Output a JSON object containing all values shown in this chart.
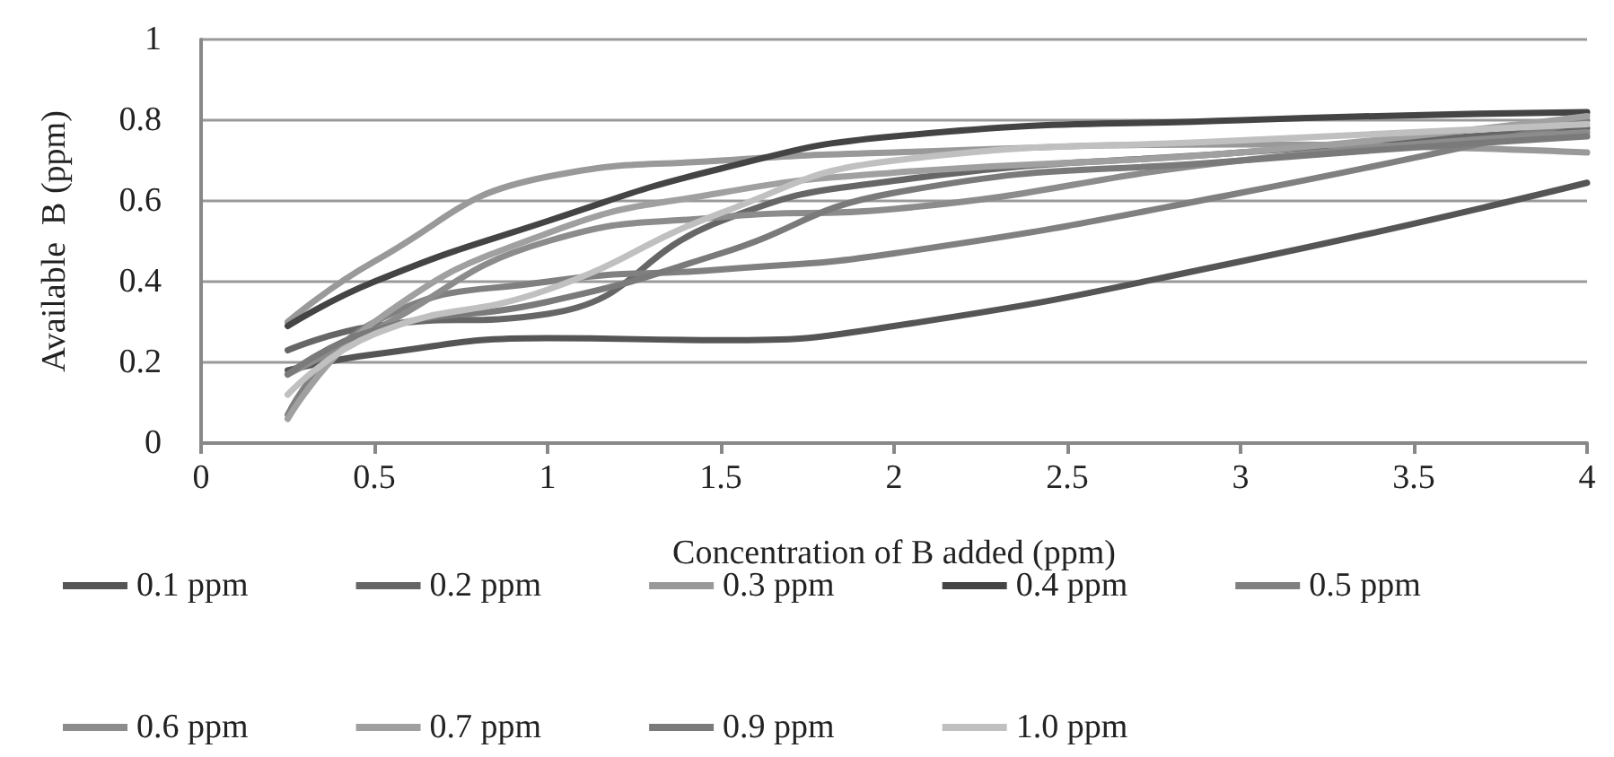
{
  "chart_data": {
    "type": "line",
    "xlabel": "Concentration of B added (ppm)",
    "ylabel": "Available  B (ppm)",
    "x": [
      0.25,
      0.5,
      1,
      1.5,
      2,
      3,
      4
    ],
    "xlim": [
      0,
      4
    ],
    "xticks": [
      0,
      0.5,
      1,
      1.5,
      2,
      2.5,
      3,
      3.5,
      4
    ],
    "ylim": [
      0,
      1
    ],
    "yticks": [
      0,
      0.2,
      0.4,
      0.6,
      0.8,
      1
    ],
    "grid": "y",
    "legend": "bottom",
    "marker": "none",
    "line_style": "solid",
    "series": [
      {
        "name": "0.1 ppm",
        "color": "#555555",
        "values": [
          0.18,
          0.22,
          0.26,
          0.255,
          0.29,
          0.45,
          0.645
        ]
      },
      {
        "name": "0.2 ppm",
        "color": "#666666",
        "values": [
          0.23,
          0.29,
          0.32,
          0.55,
          0.65,
          0.72,
          0.78
        ]
      },
      {
        "name": "0.3 ppm",
        "color": "#999999",
        "values": [
          0.3,
          0.45,
          0.66,
          0.7,
          0.72,
          0.74,
          0.72
        ]
      },
      {
        "name": "0.4 ppm",
        "color": "#444444",
        "values": [
          0.29,
          0.4,
          0.55,
          0.68,
          0.76,
          0.8,
          0.82
        ]
      },
      {
        "name": "0.5 ppm",
        "color": "#808080",
        "values": [
          0.07,
          0.3,
          0.4,
          0.43,
          0.47,
          0.62,
          0.8
        ]
      },
      {
        "name": "0.6 ppm",
        "color": "#8c8c8c",
        "values": [
          0.17,
          0.28,
          0.5,
          0.56,
          0.58,
          0.7,
          0.77
        ]
      },
      {
        "name": "0.7 ppm",
        "color": "#a0a0a0",
        "values": [
          0.06,
          0.3,
          0.52,
          0.62,
          0.67,
          0.72,
          0.81
        ]
      },
      {
        "name": "0.9 ppm",
        "color": "#7a7a7a",
        "values": [
          0.17,
          0.28,
          0.35,
          0.47,
          0.62,
          0.7,
          0.76
        ]
      },
      {
        "name": "1.0 ppm",
        "color": "#c0c0c0",
        "values": [
          0.12,
          0.27,
          0.38,
          0.57,
          0.7,
          0.75,
          0.79
        ]
      }
    ]
  }
}
